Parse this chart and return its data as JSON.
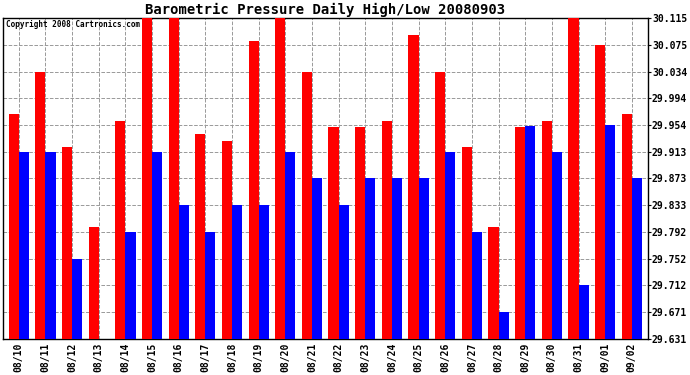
{
  "title": "Barometric Pressure Daily High/Low 20080903",
  "copyright": "Copyright 2008 Cartronics.com",
  "dates": [
    "08/10",
    "08/11",
    "08/12",
    "08/13",
    "08/14",
    "08/15",
    "08/16",
    "08/17",
    "08/18",
    "08/19",
    "08/20",
    "08/21",
    "08/22",
    "08/23",
    "08/24",
    "08/25",
    "08/26",
    "08/27",
    "08/28",
    "08/29",
    "08/30",
    "08/31",
    "09/01",
    "09/02"
  ],
  "highs": [
    29.97,
    30.034,
    29.92,
    29.8,
    29.96,
    30.115,
    30.115,
    29.94,
    29.93,
    30.08,
    30.115,
    30.034,
    29.95,
    29.95,
    29.96,
    30.09,
    30.034,
    29.92,
    29.8,
    29.95,
    29.96,
    30.115,
    30.075,
    29.97
  ],
  "lows": [
    29.913,
    29.913,
    29.752,
    29.631,
    29.792,
    29.913,
    29.833,
    29.792,
    29.833,
    29.833,
    29.913,
    29.873,
    29.833,
    29.873,
    29.873,
    29.873,
    29.913,
    29.792,
    29.671,
    29.952,
    29.913,
    29.712,
    29.954,
    29.873
  ],
  "ymin": 29.631,
  "ymax": 30.115,
  "yticks": [
    29.631,
    29.671,
    29.712,
    29.752,
    29.792,
    29.833,
    29.873,
    29.913,
    29.954,
    29.994,
    30.034,
    30.075,
    30.115
  ],
  "high_color": "#ff0000",
  "low_color": "#0000ff",
  "bg_color": "#ffffff",
  "grid_color": "#999999",
  "bar_width": 0.38,
  "figwidth": 6.9,
  "figheight": 3.75,
  "dpi": 100
}
